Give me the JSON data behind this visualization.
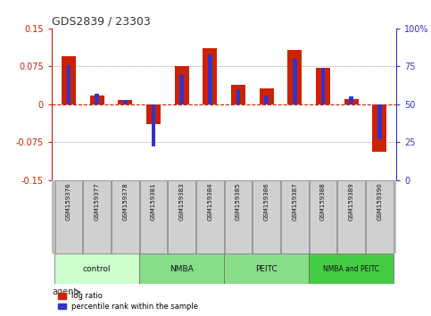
{
  "title": "GDS2839 / 23303",
  "samples": [
    "GSM159376",
    "GSM159377",
    "GSM159378",
    "GSM159381",
    "GSM159383",
    "GSM159384",
    "GSM159385",
    "GSM159386",
    "GSM159387",
    "GSM159388",
    "GSM159389",
    "GSM159390"
  ],
  "log_ratio": [
    0.095,
    0.018,
    0.008,
    -0.04,
    0.075,
    0.11,
    0.038,
    0.032,
    0.107,
    0.072,
    0.01,
    -0.095
  ],
  "percentile_rank": [
    76,
    57,
    53,
    22,
    69,
    83,
    60,
    56,
    80,
    74,
    55,
    27
  ],
  "groups": [
    {
      "label": "control",
      "color": "#ccffcc",
      "start": 0,
      "end": 3
    },
    {
      "label": "NMBA",
      "color": "#88dd88",
      "start": 3,
      "end": 6
    },
    {
      "label": "PEITC",
      "color": "#88dd88",
      "start": 6,
      "end": 9
    },
    {
      "label": "NMBA and PEITC",
      "color": "#44cc44",
      "start": 9,
      "end": 12
    }
  ],
  "ylim": [
    -0.15,
    0.15
  ],
  "y2lim": [
    0,
    100
  ],
  "yticks": [
    -0.15,
    -0.075,
    0,
    0.075,
    0.15
  ],
  "y2ticks": [
    0,
    25,
    50,
    75,
    100
  ],
  "bar_color_red": "#cc2200",
  "bar_color_blue": "#3333cc",
  "background_color": "#ffffff",
  "red_axis_color": "#cc2200",
  "blue_axis_color": "#3333cc",
  "title_color": "#333333",
  "sample_box_color": "#d0d0d0",
  "sample_box_edge": "#888888"
}
